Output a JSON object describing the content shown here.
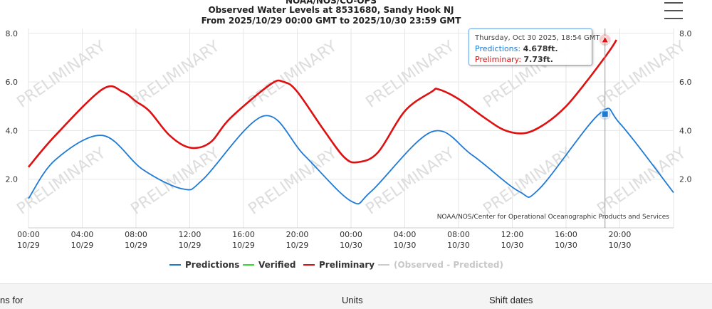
{
  "chart_data": {
    "type": "line",
    "title": [
      "NOAA/NOS/CO-OPS",
      "Observed Water Levels at 8531680, Sandy Hook NJ",
      "From 2025/10/29 00:00 GMT to 2025/10/30 23:59 GMT"
    ],
    "ylim": [
      0,
      8.2
    ],
    "yticks": [
      "2.0",
      "4.0",
      "6.0",
      "8.0"
    ],
    "xticks": [
      {
        "time": "00:00",
        "date": "10/29"
      },
      {
        "time": "04:00",
        "date": "10/29"
      },
      {
        "time": "08:00",
        "date": "10/29"
      },
      {
        "time": "12:00",
        "date": "10/29"
      },
      {
        "time": "16:00",
        "date": "10/29"
      },
      {
        "time": "20:00",
        "date": "10/29"
      },
      {
        "time": "00:00",
        "date": "10/30"
      },
      {
        "time": "04:00",
        "date": "10/30"
      },
      {
        "time": "08:00",
        "date": "10/30"
      },
      {
        "time": "12:00",
        "date": "10/30"
      },
      {
        "time": "16:00",
        "date": "10/30"
      },
      {
        "time": "20:00",
        "date": "10/30"
      }
    ],
    "series": [
      {
        "name": "Predictions",
        "color": "#1f7ad6",
        "points": [
          [
            0,
            1.2
          ],
          [
            2,
            2.8
          ],
          [
            5.5,
            3.8
          ],
          [
            8.5,
            2.4
          ],
          [
            11.5,
            1.6
          ],
          [
            13,
            2.0
          ],
          [
            17.5,
            4.6
          ],
          [
            20.5,
            3.0
          ],
          [
            24,
            1.1
          ],
          [
            25.5,
            1.5
          ],
          [
            30,
            3.95
          ],
          [
            33,
            3.0
          ],
          [
            36.5,
            1.5
          ],
          [
            38,
            1.6
          ],
          [
            42.5,
            4.7
          ],
          [
            44,
            4.3
          ],
          [
            48,
            1.45
          ]
        ]
      },
      {
        "name": "Verified",
        "color": "#33dd33",
        "points": []
      },
      {
        "name": "Preliminary",
        "color": "#dd1111",
        "points": [
          [
            0,
            2.5
          ],
          [
            2,
            3.8
          ],
          [
            5.5,
            5.7
          ],
          [
            7,
            5.6
          ],
          [
            8,
            5.2
          ],
          [
            9,
            4.8
          ],
          [
            10.5,
            3.8
          ],
          [
            12,
            3.3
          ],
          [
            13.5,
            3.5
          ],
          [
            15,
            4.5
          ],
          [
            18,
            5.9
          ],
          [
            19,
            6.0
          ],
          [
            20,
            5.6
          ],
          [
            22,
            4.0
          ],
          [
            23.5,
            2.9
          ],
          [
            24.5,
            2.7
          ],
          [
            26,
            3.1
          ],
          [
            28,
            4.8
          ],
          [
            30,
            5.6
          ],
          [
            30.5,
            5.7
          ],
          [
            32,
            5.3
          ],
          [
            34,
            4.5
          ],
          [
            35.5,
            4.0
          ],
          [
            37,
            3.9
          ],
          [
            38.5,
            4.3
          ],
          [
            40,
            5.0
          ],
          [
            41.5,
            6.0
          ],
          [
            43,
            7.1
          ],
          [
            43.5,
            7.5
          ],
          [
            43.75,
            7.73
          ]
        ]
      },
      {
        "name": "(Observed - Predicted)",
        "color": "#cccccc",
        "points": []
      }
    ],
    "watermark": "PRELIMINARY",
    "credit": "NOAA/NOS/Center for Operational Oceanographic Products and Services"
  },
  "tooltip": {
    "time": "Thursday, Oct 30 2025, 18:54 GMT",
    "pred_label": "Predictions:",
    "pred_value": "4.678ft.",
    "prel_label": "Preliminary:",
    "prel_value": "7.73ft."
  },
  "legend": [
    "Predictions",
    "Verified",
    "Preliminary",
    "(Observed - Predicted)"
  ],
  "form": {
    "left_label": "ns for",
    "units_label": "Units",
    "shift_label": "Shift dates"
  },
  "colors": {
    "predictions": "#1f7ad6",
    "verified": "#33dd33",
    "preliminary": "#dd1111",
    "diff": "#cccccc"
  }
}
